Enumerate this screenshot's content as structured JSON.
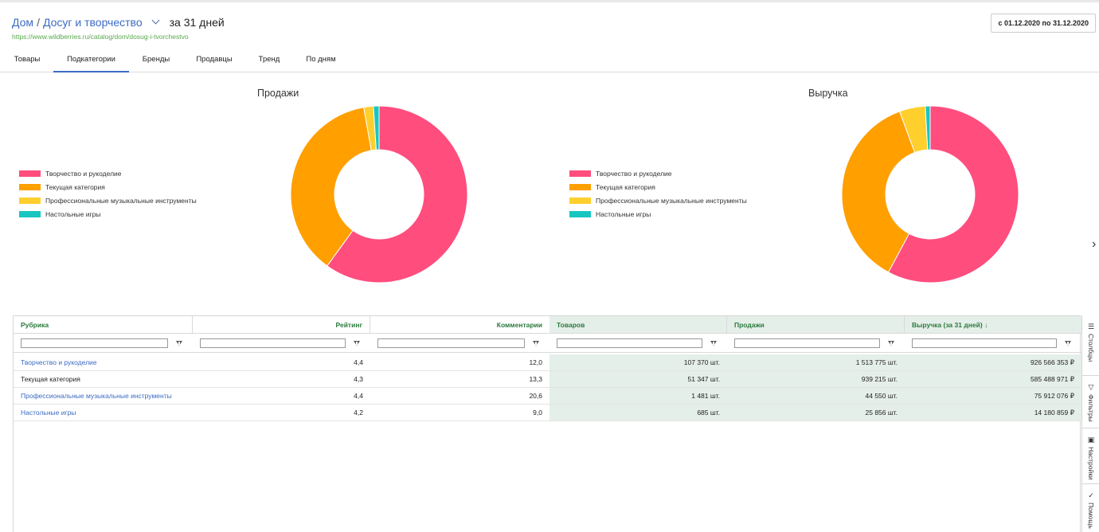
{
  "header": {
    "breadcrumb": [
      "Дом",
      "Досуг и творчество"
    ],
    "separator": "/",
    "period": "за 31 дней",
    "url": "https://www.wildberries.ru/catalog/dom/dosug-i-tvorchestvo",
    "date_range": "с 01.12.2020 по 31.12.2020"
  },
  "tabs": [
    {
      "label": "Товары",
      "active": false
    },
    {
      "label": "Подкатегории",
      "active": true
    },
    {
      "label": "Бренды",
      "active": false
    },
    {
      "label": "Продавцы",
      "active": false
    },
    {
      "label": "Тренд",
      "active": false
    },
    {
      "label": "По дням",
      "active": false
    }
  ],
  "colors": {
    "pink": "#ff4d7e",
    "orange": "#ff9f00",
    "yellow": "#ffcf2e",
    "teal": "#17c6c1",
    "link": "#3c6bc4",
    "header_green": "#2b7a3d"
  },
  "chart_data": [
    {
      "type": "pie",
      "title": "Продажи",
      "categories": [
        "Творчество и рукоделие",
        "Текущая категория",
        "Профессиональные музыкальные инструменты",
        "Настольные игры"
      ],
      "values": [
        1513775,
        939215,
        44550,
        25856
      ],
      "colors": [
        "#ff4d7e",
        "#ff9f00",
        "#ffcf2e",
        "#17c6c1"
      ],
      "legend": "left"
    },
    {
      "type": "pie",
      "title": "Выручка",
      "categories": [
        "Творчество и рукоделие",
        "Текущая категория",
        "Профессиональные музыкальные инструменты",
        "Настольные игры"
      ],
      "values": [
        926566353,
        585488971,
        75912076,
        14180859
      ],
      "colors": [
        "#ff4d7e",
        "#ff9f00",
        "#ffcf2e",
        "#17c6c1"
      ],
      "legend": "left"
    }
  ],
  "table": {
    "columns": [
      "Рубрика",
      "Рейтинг",
      "Комментарии",
      "Товаров",
      "Продажи",
      "Выручка (за 31 дней) ↓"
    ],
    "rows": [
      {
        "name": "Творчество и рукоделие",
        "rating": "4,4",
        "comments": "12,0",
        "goods": "107 370 шт.",
        "sales": "1 513 775 шт.",
        "revenue": "926 566 353 ₽",
        "link": true
      },
      {
        "name": "Текущая категория",
        "rating": "4,3",
        "comments": "13,3",
        "goods": "51 347 шт.",
        "sales": "939 215 шт.",
        "revenue": "585 488 971 ₽",
        "link": false
      },
      {
        "name": "Профессиональные музыкальные инструменты",
        "rating": "4,4",
        "comments": "20,6",
        "goods": "1 481 шт.",
        "sales": "44 550 шт.",
        "revenue": "75 912 076 ₽",
        "link": true
      },
      {
        "name": "Настольные игры",
        "rating": "4,2",
        "comments": "9,0",
        "goods": "685 шт.",
        "sales": "25 856 шт.",
        "revenue": "14 180 859 ₽",
        "link": true
      }
    ]
  },
  "side_panel": [
    "Столбцы",
    "Фильтры",
    "Настройки",
    "Помощь"
  ],
  "icons": {
    "dropdown": "chevron-down-icon",
    "filter": "filter-icon",
    "columns": "columns-icon",
    "settings": "settings-icon",
    "help": "help-icon",
    "next": "chevron-right-icon"
  }
}
